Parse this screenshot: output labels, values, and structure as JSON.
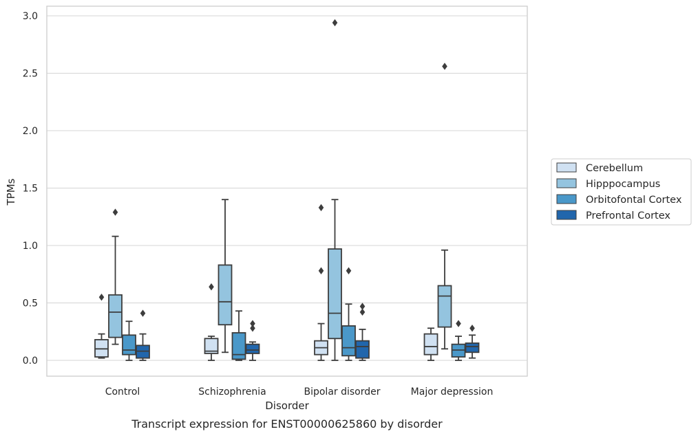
{
  "chart_data": {
    "type": "box",
    "caption": "Transcript expression for ENST00000625860 by disorder",
    "xlabel": "Disorder",
    "ylabel": "TPMs",
    "ylim": [
      -0.14,
      3.08
    ],
    "yticks": [
      "0.0",
      "0.5",
      "1.0",
      "1.5",
      "2.0",
      "2.5",
      "3.0"
    ],
    "grid": "horizontal",
    "legend_position": "right",
    "categories": [
      "Control",
      "Schizophrenia",
      "Bipolar disorder",
      "Major depression"
    ],
    "series": [
      {
        "name": "Cerebellum",
        "color": "#d0e1f2",
        "boxes": [
          {
            "whislo": 0.02,
            "q1": 0.03,
            "med": 0.1,
            "q3": 0.18,
            "whishi": 0.23,
            "fliers": [
              0.55
            ]
          },
          {
            "whislo": 0.0,
            "q1": 0.06,
            "med": 0.08,
            "q3": 0.19,
            "whishi": 0.21,
            "fliers": [
              0.64
            ]
          },
          {
            "whislo": 0.0,
            "q1": 0.05,
            "med": 0.11,
            "q3": 0.17,
            "whishi": 0.32,
            "fliers": [
              0.78,
              1.33
            ]
          },
          {
            "whislo": 0.0,
            "q1": 0.05,
            "med": 0.12,
            "q3": 0.23,
            "whishi": 0.28,
            "fliers": []
          }
        ]
      },
      {
        "name": "Hipppocampus",
        "color": "#94c4df",
        "boxes": [
          {
            "whislo": 0.14,
            "q1": 0.2,
            "med": 0.42,
            "q3": 0.57,
            "whishi": 1.08,
            "fliers": [
              1.29
            ]
          },
          {
            "whislo": 0.07,
            "q1": 0.31,
            "med": 0.51,
            "q3": 0.83,
            "whishi": 1.4,
            "fliers": []
          },
          {
            "whislo": 0.0,
            "q1": 0.19,
            "med": 0.41,
            "q3": 0.97,
            "whishi": 1.4,
            "fliers": [
              2.94
            ]
          },
          {
            "whislo": 0.1,
            "q1": 0.29,
            "med": 0.56,
            "q3": 0.65,
            "whishi": 0.96,
            "fliers": [
              2.56
            ]
          }
        ]
      },
      {
        "name": "Orbitofontal Cortex",
        "color": "#4a98c9",
        "boxes": [
          {
            "whislo": 0.0,
            "q1": 0.05,
            "med": 0.09,
            "q3": 0.22,
            "whishi": 0.34,
            "fliers": []
          },
          {
            "whislo": 0.0,
            "q1": 0.01,
            "med": 0.05,
            "q3": 0.24,
            "whishi": 0.43,
            "fliers": []
          },
          {
            "whislo": 0.0,
            "q1": 0.04,
            "med": 0.11,
            "q3": 0.3,
            "whishi": 0.49,
            "fliers": [
              0.78
            ]
          },
          {
            "whislo": 0.0,
            "q1": 0.03,
            "med": 0.09,
            "q3": 0.14,
            "whishi": 0.21,
            "fliers": [
              0.32
            ]
          }
        ]
      },
      {
        "name": "Prefrontal Cortex",
        "color": "#2166ac",
        "boxes": [
          {
            "whislo": 0.0,
            "q1": 0.02,
            "med": 0.08,
            "q3": 0.13,
            "whishi": 0.23,
            "fliers": [
              0.41
            ]
          },
          {
            "whislo": 0.0,
            "q1": 0.06,
            "med": 0.09,
            "q3": 0.14,
            "whishi": 0.16,
            "fliers": [
              0.28,
              0.32
            ]
          },
          {
            "whislo": 0.0,
            "q1": 0.02,
            "med": 0.12,
            "q3": 0.17,
            "whishi": 0.27,
            "fliers": [
              0.42,
              0.47
            ]
          },
          {
            "whislo": 0.02,
            "q1": 0.07,
            "med": 0.12,
            "q3": 0.15,
            "whishi": 0.22,
            "fliers": [
              0.28
            ]
          }
        ]
      }
    ]
  }
}
